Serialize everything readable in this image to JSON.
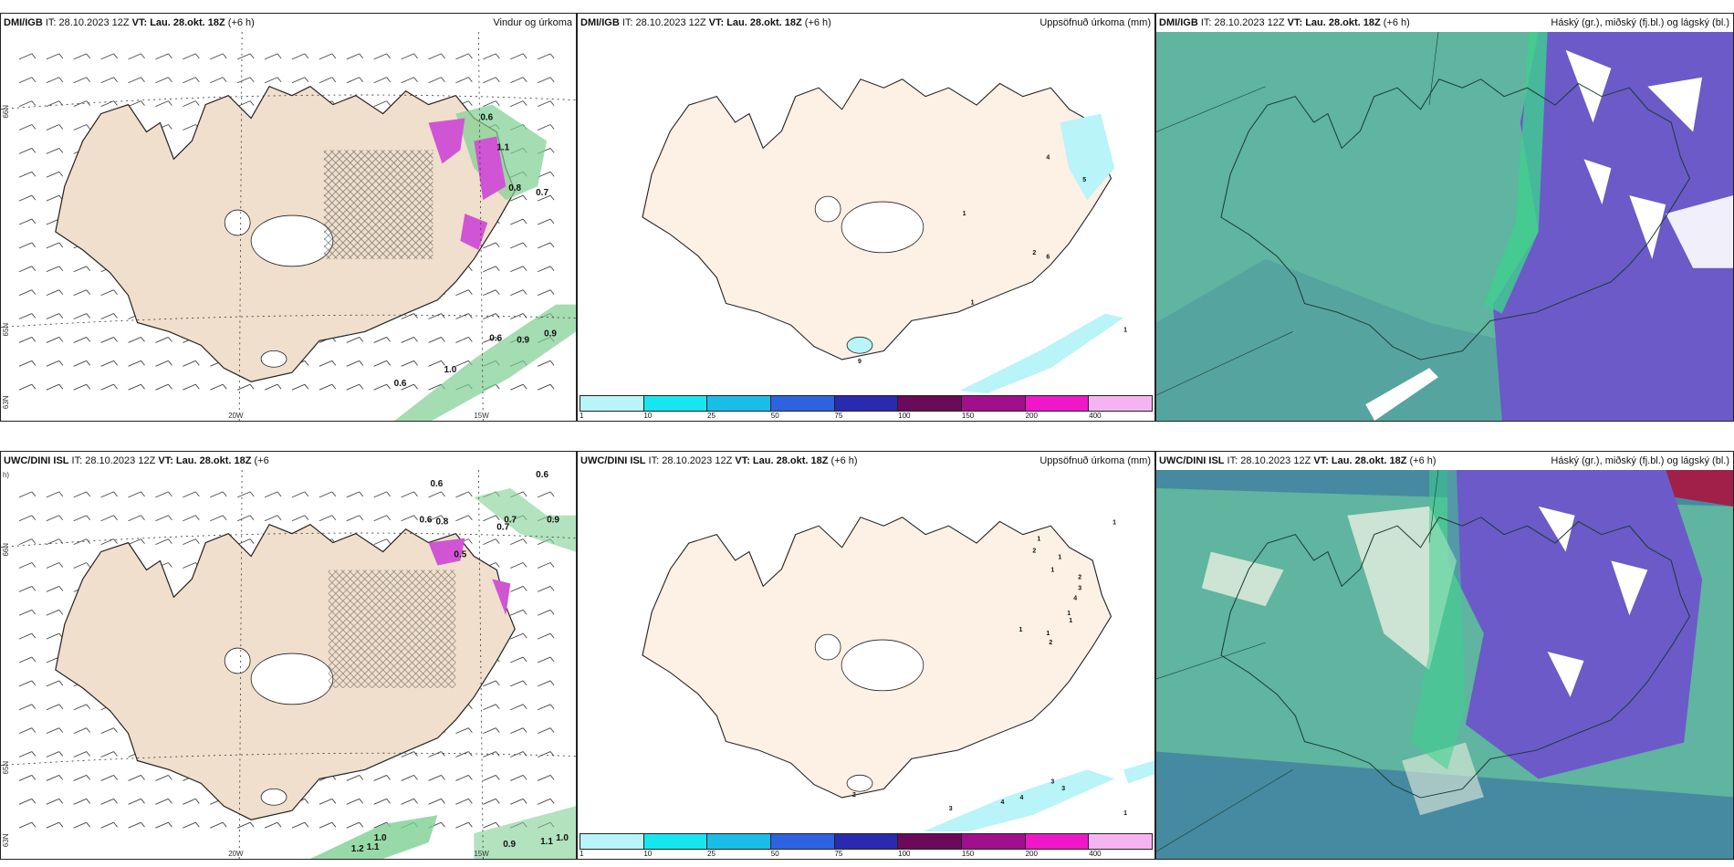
{
  "rows": [
    {
      "wind": {
        "source": "DMI/IGB",
        "it": " IT: 28.10.2023 12Z ",
        "vt": "VT: Lau. 28.okt. 18Z",
        "lead": " (+6 h)",
        "title": "Vindur og úrkoma",
        "values": [
          "0.6",
          "0.7",
          "1.1",
          "0.6",
          "0.9",
          "0.9",
          "1.0",
          "0.6",
          "0.8"
        ]
      },
      "precip": {
        "source": "DMI/IGB",
        "it": " IT: 28.10.2023 12Z ",
        "vt": "VT: Lau. 28.okt. 18Z",
        "lead": " (+6 h)",
        "title": "Uppsöfnuð úrkoma (mm)",
        "values": [
          "4",
          "5",
          "1",
          "2",
          "6",
          "1",
          "1",
          "9"
        ]
      },
      "cloud": {
        "source": "DMI/IGB",
        "it": " IT: 28.10.2023 12Z ",
        "vt": "VT: Lau. 28.okt. 18Z",
        "lead": " (+6 h)",
        "title": "Háský (gr.), miðský (fj.bl.) og lágský (bl.)"
      }
    },
    {
      "wind": {
        "source": "UWC/DINI ISL",
        "it": " IT: 28.10.2023 12Z ",
        "vt": "VT: Lau. 28.okt. 18Z",
        "lead": " (+6",
        "lead2": "h)",
        "title": "",
        "values": [
          "0.6",
          "0.6",
          "0.6",
          "0.8",
          "0.7",
          "0.7",
          "0.9",
          "0.5",
          "1.0",
          "1.2",
          "1.1",
          "0.9",
          "1.1",
          "1.0"
        ]
      },
      "precip": {
        "source": "UWC/DINI ISL",
        "it": " IT: 28.10.2023 12Z ",
        "vt": "VT: Lau. 28.okt. 18Z",
        "lead": " (+6 h)",
        "title": "Uppsöfnuð úrkoma (mm)",
        "values": [
          "1",
          "1",
          "2",
          "1",
          "1",
          "2",
          "3",
          "4",
          "1",
          "1",
          "1",
          "1",
          "2",
          "3",
          "3",
          "4",
          "4",
          "3",
          "1",
          "2"
        ]
      },
      "cloud": {
        "source": "UWC/DINI ISL",
        "it": " IT: 28.10.2023 12Z ",
        "vt": "VT: Lau. 28.okt. 18Z",
        "lead": " (+6 h)",
        "title": "Háský (gr.), miðský (fj.bl.) og lágský (bl.)"
      }
    }
  ],
  "grid_labels": {
    "lat_65": "65N",
    "lat_66": "66N",
    "lat_63": "63N",
    "lon_20w": "20W",
    "lon_15w": "15W"
  },
  "precip_scale": {
    "ticks": [
      "1",
      "10",
      "25",
      "50",
      "75",
      "100",
      "150",
      "200",
      "400"
    ],
    "colors": [
      "#b8f4f8",
      "#16e6f0",
      "#19bde8",
      "#2e63e0",
      "#2a2ab0",
      "#6a0a58",
      "#a00f8c",
      "#ee18c8",
      "#f4b4f2"
    ]
  },
  "colors": {
    "land": "#f0dfcc",
    "land_precip": "#fdf0e4",
    "cloud_base": "#5fb59f",
    "cloud_mid": "#6c5ac8",
    "rain_green": "#7ecf92",
    "snow_magenta": "#d055d4"
  }
}
